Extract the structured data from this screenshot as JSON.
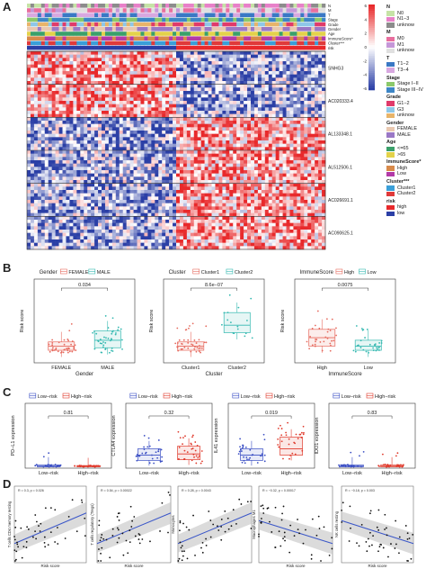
{
  "panels": {
    "A": "A",
    "B": "B",
    "C": "C",
    "D": "D"
  },
  "colors": {
    "high": "#e8292b",
    "low": "#2b3fa6",
    "mid": "#ffffff",
    "teal": "#33b8b0",
    "salmon": "#e66a5e",
    "blue": "#3b4fc4",
    "red": "#e03a2c"
  },
  "heatmap": {
    "annotation_tracks": [
      "N",
      "M",
      "T",
      "Stage",
      "Grade",
      "Gender",
      "Age",
      "ImmuneScore*",
      "Cluster***",
      "risk"
    ],
    "genes": [
      "SNHG3",
      "AC020333.4",
      "AL133348.1",
      "AL512506.1",
      "AC026691.1",
      "AC090625.1"
    ],
    "scale_ticks": [
      "6",
      "4",
      "2",
      "0",
      "-2",
      "-4",
      "-6"
    ]
  },
  "legend": [
    {
      "title": "N",
      "items": [
        {
          "label": "N0",
          "color": "#c6e3a6"
        },
        {
          "label": "N1−3",
          "color": "#e880c9"
        },
        {
          "label": "unknow",
          "color": "#8c8c8c"
        }
      ]
    },
    {
      "title": "M",
      "items": [
        {
          "label": "M0",
          "color": "#e86e9e"
        },
        {
          "label": "M1",
          "color": "#c597d8"
        },
        {
          "label": "unknow",
          "color": "#e0e0e0"
        }
      ]
    },
    {
      "title": "T",
      "items": [
        {
          "label": "T1−2",
          "color": "#3a78c4"
        },
        {
          "label": "T3−4",
          "color": "#d8a8e0"
        }
      ]
    },
    {
      "title": "Stage",
      "items": [
        {
          "label": "Stage I−II",
          "color": "#8bc96b"
        },
        {
          "label": "Stage III−IV",
          "color": "#3d86c6"
        }
      ]
    },
    {
      "title": "Grade",
      "items": [
        {
          "label": "G1−2",
          "color": "#e03a6a"
        },
        {
          "label": "G3",
          "color": "#8ec7e8"
        },
        {
          "label": "unknow",
          "color": "#e8b46a"
        }
      ]
    },
    {
      "title": "Gender",
      "items": [
        {
          "label": "FEMALE",
          "color": "#e9c8b0"
        },
        {
          "label": "MALE",
          "color": "#9a78c6"
        }
      ]
    },
    {
      "title": "Age",
      "items": [
        {
          "label": "<=65",
          "color": "#3aa06a"
        },
        {
          "label": ">65",
          "color": "#e3d24a"
        }
      ]
    },
    {
      "title": "ImmuneScore*",
      "items": [
        {
          "label": "High",
          "color": "#d88a4a"
        },
        {
          "label": "Low",
          "color": "#b33aa8"
        }
      ]
    },
    {
      "title": "Cluster***",
      "items": [
        {
          "label": "Cluster1",
          "color": "#3a9fd8"
        },
        {
          "label": "Cluster2",
          "color": "#e03a3a"
        }
      ]
    },
    {
      "title": "risk",
      "items": [
        {
          "label": "high",
          "color": "#e8292b"
        },
        {
          "label": "low",
          "color": "#2b3fa6"
        }
      ]
    }
  ],
  "chart_data": [
    {
      "type": "box",
      "id": "B1",
      "legend_title": "Gender",
      "groups": [
        "FEMALE",
        "MALE"
      ],
      "xlabel": "Gender",
      "ylabel": "Risk score",
      "pvalue": "0.034"
    },
    {
      "type": "box",
      "id": "B2",
      "legend_title": "Cluster",
      "groups": [
        "Cluster1",
        "Cluster2"
      ],
      "xlabel": "Cluster",
      "ylabel": "Risk score",
      "pvalue": "8.6e−07"
    },
    {
      "type": "box",
      "id": "B3",
      "legend_title": "ImmuneScore",
      "groups": [
        "High",
        "Low"
      ],
      "xlabel": "ImmuneScore",
      "ylabel": "Risk score",
      "pvalue": "0.0075"
    },
    {
      "type": "box",
      "id": "C1",
      "groups": [
        "Low−risk",
        "High−risk"
      ],
      "ylabel": "PD−L1 expression",
      "pvalue": "0.81"
    },
    {
      "type": "box",
      "id": "C2",
      "groups": [
        "Low−risk",
        "High−risk"
      ],
      "ylabel": "CTLA4 expression",
      "pvalue": "0.32"
    },
    {
      "type": "box",
      "id": "C3",
      "groups": [
        "Low−risk",
        "High−risk"
      ],
      "ylabel": "IL41 expression",
      "pvalue": "0.019"
    },
    {
      "type": "box",
      "id": "C4",
      "groups": [
        "Low−risk",
        "High−risk"
      ],
      "ylabel": "IDO1 expression",
      "pvalue": "0.83"
    },
    {
      "type": "scatter",
      "id": "D1",
      "ylabel": "T cells CD4 memory resting",
      "xlabel": "Risk score",
      "stat": "R = 0.3, p = 0.026"
    },
    {
      "type": "scatter",
      "id": "D2",
      "ylabel": "T cells regulatory (Tregs)",
      "xlabel": "Risk score",
      "stat": "R = 0.54, p = 0.00022"
    },
    {
      "type": "scatter",
      "id": "D3",
      "ylabel": "Monocytes",
      "xlabel": "",
      "stat": "R = 0.28, p = 0.0043"
    },
    {
      "type": "scatter",
      "id": "D4",
      "ylabel": "Macrophages M1",
      "xlabel": "Risk score",
      "stat": "R = −0.32, p = 0.00017"
    },
    {
      "type": "scatter",
      "id": "D5",
      "ylabel": "NK cells resting",
      "xlabel": "Risk score",
      "stat": "R = −0.18, p = 0.003"
    }
  ],
  "ctext": {
    "low": "Low−risk",
    "high": "High−risk"
  }
}
